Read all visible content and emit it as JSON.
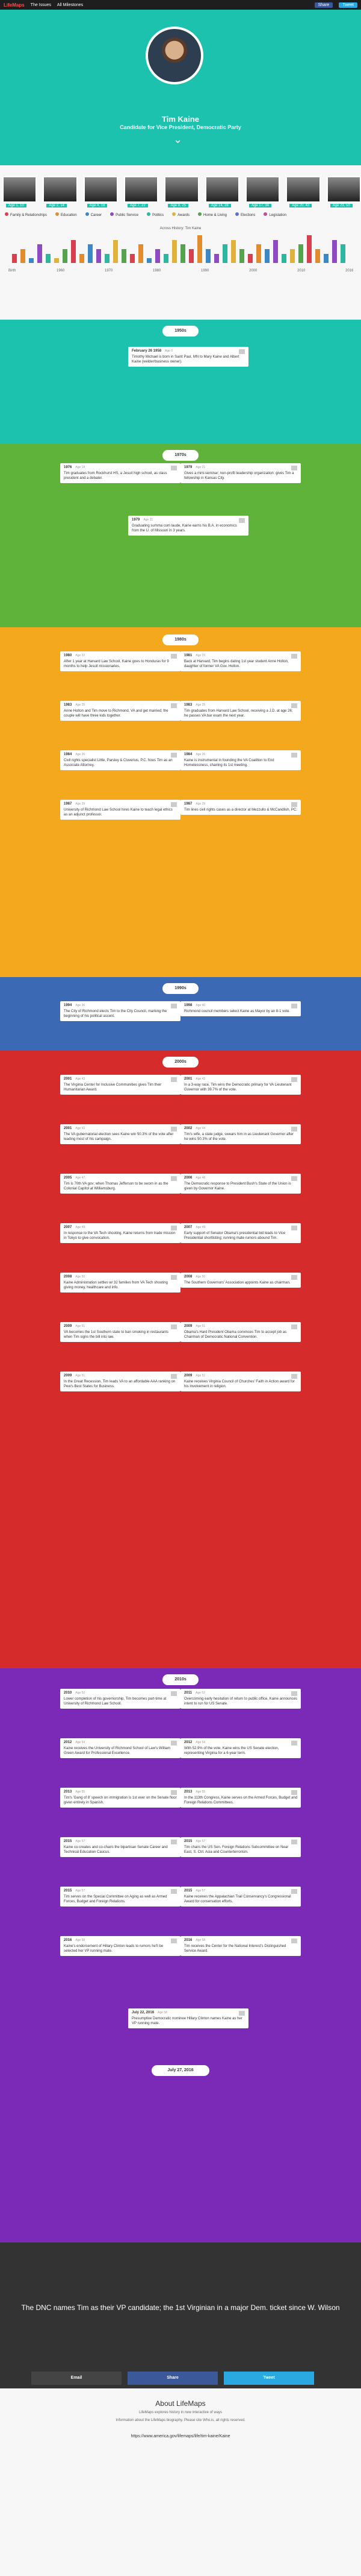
{
  "topbar": {
    "logo": "LifeMaps",
    "menu": "The Issues",
    "mid": "All Milestones",
    "fb": "Share",
    "tw": "Tweet"
  },
  "hero": {
    "name": "Tim Kaine",
    "role": "Candidate for Vice President, Democratic Party"
  },
  "photos": [
    {
      "label": "Age 1, 10"
    },
    {
      "label": "Age 2, 14"
    },
    {
      "label": "Age 4, 18"
    },
    {
      "label": "Age 7, 22"
    },
    {
      "label": "Age 9, 25"
    },
    {
      "label": "Age 14, 28"
    },
    {
      "label": "Age 17, 34"
    },
    {
      "label": "Age 20, 43"
    },
    {
      "label": "Age 23, 50"
    }
  ],
  "legend": [
    {
      "label": "Family & Relationships",
      "color": "#d6404f"
    },
    {
      "label": "Education",
      "color": "#e38c2d"
    },
    {
      "label": "Career",
      "color": "#3c87c5"
    },
    {
      "label": "Public Service",
      "color": "#8d4ac2"
    },
    {
      "label": "Politics",
      "color": "#2fb69e"
    },
    {
      "label": "Awards",
      "color": "#e0b23a"
    },
    {
      "label": "Home & Living",
      "color": "#55a34f"
    },
    {
      "label": "Elections",
      "color": "#5e6fd1"
    },
    {
      "label": "Legislation",
      "color": "#c74c92"
    }
  ],
  "hist_title": "Across History: Tim Kaine",
  "hist": [
    2,
    3,
    1,
    4,
    2,
    1,
    3,
    5,
    2,
    4,
    3,
    2,
    5,
    3,
    2,
    4,
    1,
    3,
    2,
    5,
    4,
    3,
    6,
    3,
    2,
    4,
    5,
    3,
    2,
    4,
    3,
    5,
    2,
    3,
    4,
    6,
    3,
    2,
    5,
    4
  ],
  "axis": [
    "Birth",
    "1960",
    "1970",
    "1980",
    "1990",
    "2000",
    "2010",
    "2016"
  ],
  "decades": [
    "1950s",
    "1970s",
    "1980s",
    "1990s",
    "2000s",
    "2010s"
  ],
  "cards": [
    {
      "date": "February 26 1958",
      "age": "Age 0",
      "text": "Timothy Michael is born in Saint Paul, MN to Mary Kaine and Albert Kaine (welder/business owner)."
    },
    {
      "date": "1976",
      "age": "Age 18",
      "text": "Tim graduates from Rockhurst HS, a Jesuit high school, as class president and a debater."
    },
    {
      "date": "1979",
      "age": "Age 21",
      "text": "Gives a mini-seminar; non-profit leadership organization: gives Tim a fellowship in Kansas City."
    },
    {
      "date": "1979",
      "age": "Age 21",
      "text": "Graduating summa cum laude, Kaine earns his B.A. in economics from the U. of Missouri in 3 years."
    },
    {
      "date": "1980",
      "age": "Age 22",
      "text": "After 1 year at Harvard Law School, Kaine goes to Honduras for 9 months to help Jesuit missionaries."
    },
    {
      "date": "1981",
      "age": "Age 23",
      "text": "Back at Harvard, Tim begins dating 1st year student Anne Holton, daughter of former VA Gov. Holton."
    },
    {
      "date": "1983",
      "age": "Age 25",
      "text": "Anne Holton and Tim move to Richmond, VA and get married; the couple will have three kids together."
    },
    {
      "date": "1983",
      "age": "Age 25",
      "text": "Tim graduates from Harvard Law School, receiving a J.D. at age 26; he passes VA bar exam the next year."
    },
    {
      "date": "1984",
      "age": "Age 26",
      "text": "Civil rights specialist Little, Parsley & Cluverius, P.C. hires Tim as an Associate Attorney."
    },
    {
      "date": "1984",
      "age": "Age 26",
      "text": "Kaine is instrumental in founding the VA Coalition to End Homelessness, chairing its 1st meeting."
    },
    {
      "date": "1987",
      "age": "Age 29",
      "text": "University of Richmond Law School hires Kaine to teach legal ethics as an adjunct professor."
    },
    {
      "date": "1987",
      "age": "Age 29",
      "text": "Tim lines civil rights cases as a director at Mezzullo & McCandlish, PC."
    },
    {
      "date": "1994",
      "age": "Age 36",
      "text": "The City of Richmond elects Tim to the City Council, marking the beginning of his political ascent."
    },
    {
      "date": "1998",
      "age": "Age 40",
      "text": "Richmond council members select Kaine as Mayor by an 8-1 vote."
    },
    {
      "date": "2001",
      "age": "Age 43",
      "text": "The Virginia Center for Inclusive Communities gives Tim their Humanitarian Award."
    },
    {
      "date": "2001",
      "age": "Age 43",
      "text": "In a 3-way race, Tim wins the Democratic primary for VA Lieutenant Governor with 39.7% of the vote."
    },
    {
      "date": "2001",
      "age": "Age 43",
      "text": "The VA gubernatorial election sees Kaine win 50.3% of the vote after leading most of his campaign."
    },
    {
      "date": "2002",
      "age": "Age 44",
      "text": "Tim's wife, a state judge, swears him in as Lieutenant Governor after he wins 50.3% of the vote."
    },
    {
      "date": "2005",
      "age": "Age 47",
      "text": "Tim is 70th VA gov; when Thomas Jefferson to be sworn in as the Colonial Capitol at Williamsburg."
    },
    {
      "date": "2006",
      "age": "Age 48",
      "text": "The Democratic response to President Bush's State of the Union is given by Governor Kaine."
    },
    {
      "date": "2007",
      "age": "Age 49",
      "text": "In response to the VA Tech shooting, Kaine returns from trade mission in Tokyo to give convocation."
    },
    {
      "date": "2007",
      "age": "Age 49",
      "text": "Early support of Senator Obama's presidential bid leads to Vice Presidential shortlisting; running mate rumors abound Tim."
    },
    {
      "date": "2008",
      "age": "Age 50",
      "text": "Kaine Administration settles w/ 32 families from VA Tech shooting giving money, healthcare and info."
    },
    {
      "date": "2008",
      "age": "Age 50",
      "text": "The Southern Governors' Association appoints Kaine as chairman."
    },
    {
      "date": "2009",
      "age": "Age 51",
      "text": "VA becomes the 1st Southern state to ban smoking in restaurants when Tim signs the bill into law."
    },
    {
      "date": "2009",
      "age": "Age 51",
      "text": "Obama's Hard President Obama convinces Tim to accept job as Chairman of Democratic National Convention."
    },
    {
      "date": "2009",
      "age": "Age 51",
      "text": "In the Great Recession, Tim leads VA to an affordable AAA ranking on Pew's Best States for Business."
    },
    {
      "date": "2009",
      "age": "Age 51",
      "text": "Kaine receives Virginia Council of Churches' Faith in Action award for his involvement in religion."
    },
    {
      "date": "2010",
      "age": "Age 52",
      "text": "Lower completion of his governorship, Tim becomes part-time at University of Richmond Law School."
    },
    {
      "date": "2011",
      "age": "Age 53",
      "text": "Overcoming early hesitation of return to public office, Kaine announces intent to run for US Senate."
    },
    {
      "date": "2012",
      "age": "Age 54",
      "text": "Kaine receives the University of Richmond School of Law's William Green Award for Professional Excellence."
    },
    {
      "date": "2012",
      "age": "Age 54",
      "text": "With 52.9% of the vote, Kaine wins the US Senate election, representing Virginia for a 6-year term."
    },
    {
      "date": "2013",
      "age": "Age 55",
      "text": "Tim's 'Gang of 8' speech on immigration is 1st ever on the Senate floor given entirely in Spanish."
    },
    {
      "date": "2013",
      "age": "Age 55",
      "text": "In the 113th Congress, Kaine serves on the Armed Forces, Budget and Foreign Relations Committees."
    },
    {
      "date": "2015",
      "age": "Age 57",
      "text": "Kaine co-creates and co-chairs the bipartisan Senate Career and Technical Education Caucus."
    },
    {
      "date": "2015",
      "age": "Age 57",
      "text": "Tim chairs the US Sen. Foreign Relations Subcommittee on Near East, S. Ctrl. Asia and Counterterrorism."
    },
    {
      "date": "2015",
      "age": "Age 57",
      "text": "Tim serves on the Special Committee on Aging as well as Armed Forces, Budget and Foreign Relations."
    },
    {
      "date": "2015",
      "age": "Age 57",
      "text": "Kaine receives the Appalachian Trail Conservancy's Congressional Award for conservation efforts."
    },
    {
      "date": "2016",
      "age": "Age 58",
      "text": "Kaine's endorsement of Hillary Clinton leads to rumors he'll be selected her VP running mate."
    },
    {
      "date": "2016",
      "age": "Age 58",
      "text": "Tim receives the Center for the National Interest's Distinguished Service Award."
    },
    {
      "date": "July 22, 2016",
      "age": "Age 58",
      "text": "Presumptive Democratic nominee Hillary Clinton names Kaine as her VP running mate."
    }
  ],
  "final_date": "July 27, 2016",
  "feature_text": "The DNC names Tim as their VP candidate; the 1st Virginian in a major Dem. ticket since W. Wilson",
  "shares": [
    "Email",
    "Share",
    "Tweet"
  ],
  "share_colors": [
    "#444",
    "#3b5998",
    "#2aa9e0"
  ],
  "footer": {
    "title": "About LifeMaps",
    "line1": "LifeMaps explores history in new interactive of ways",
    "line2": "Information about the LifeMaps biography. Please cite Who.is, all rights reserved.",
    "gov": "https://www.america.gov/lifemaps/life/tim-kaine/Kaine"
  }
}
